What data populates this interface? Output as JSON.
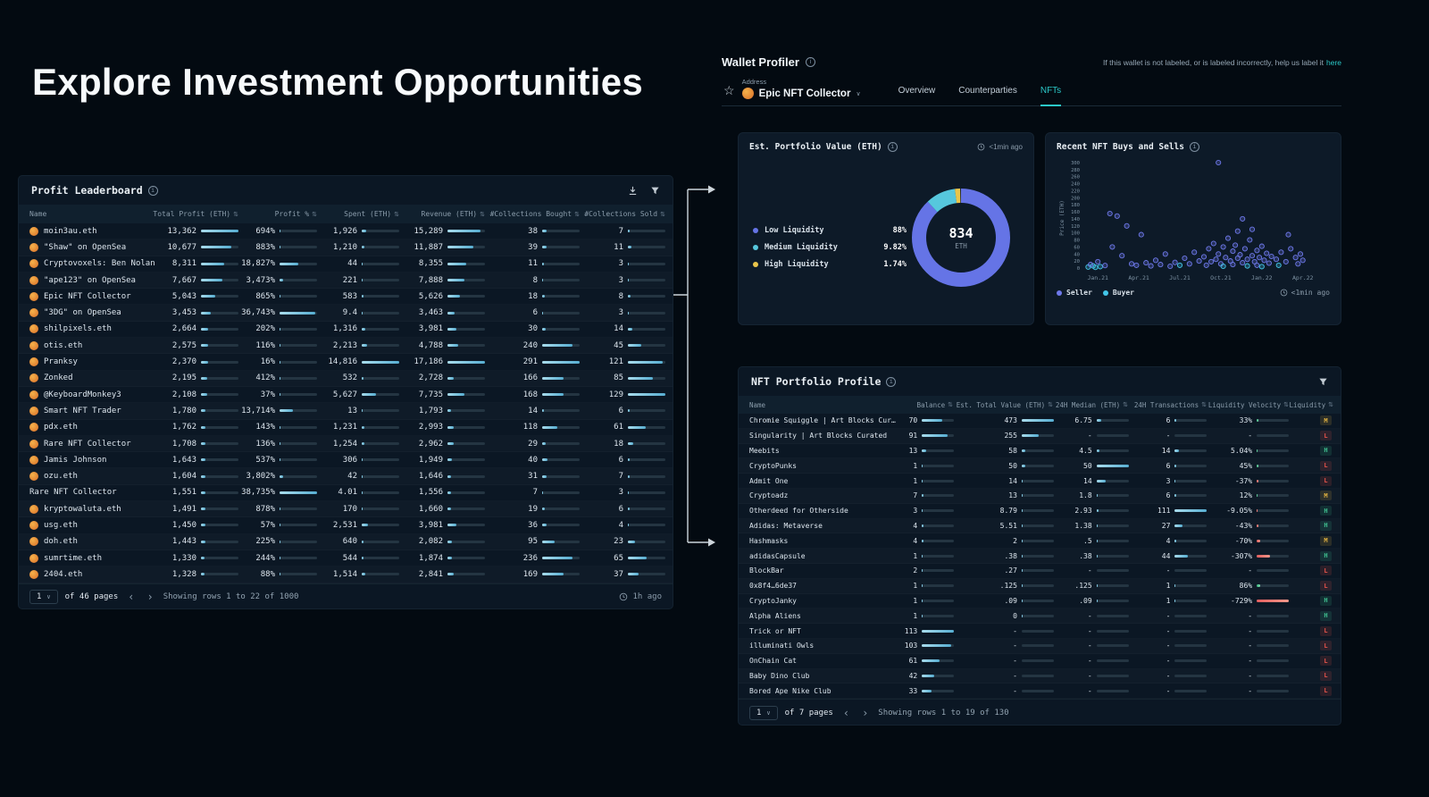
{
  "page": {
    "title": "Explore Investment Opportunities"
  },
  "leaderboard": {
    "title": "Profit Leaderboard",
    "columns": {
      "name": "Name",
      "total_profit": "Total Profit (ETH)",
      "profit_pct": "Profit %",
      "spent": "Spent (ETH)",
      "revenue": "Revenue (ETH)",
      "bought": "#Collections Bought",
      "sold": "#Collections Sold"
    },
    "rows": [
      {
        "name": "moin3au.eth",
        "avatar": true,
        "total_profit": "13,362",
        "profit_pct": "694%",
        "spent": "1,926",
        "revenue": "15,289",
        "bought": "38",
        "sold": "7"
      },
      {
        "name": "\"Shaw\" on OpenSea",
        "avatar": true,
        "total_profit": "10,677",
        "profit_pct": "883%",
        "spent": "1,210",
        "revenue": "11,887",
        "bought": "39",
        "sold": "11"
      },
      {
        "name": "Cryptovoxels: Ben Nolan",
        "avatar": true,
        "total_profit": "8,311",
        "profit_pct": "18,827%",
        "spent": "44",
        "revenue": "8,355",
        "bought": "11",
        "sold": "3"
      },
      {
        "name": "\"ape123\" on OpenSea",
        "avatar": true,
        "total_profit": "7,667",
        "profit_pct": "3,473%",
        "spent": "221",
        "revenue": "7,888",
        "bought": "8",
        "sold": "3"
      },
      {
        "name": "Epic NFT Collector",
        "avatar": true,
        "total_profit": "5,043",
        "profit_pct": "865%",
        "spent": "583",
        "revenue": "5,626",
        "bought": "18",
        "sold": "8"
      },
      {
        "name": "\"3DG\" on OpenSea",
        "avatar": true,
        "total_profit": "3,453",
        "profit_pct": "36,743%",
        "spent": "9.4",
        "revenue": "3,463",
        "bought": "6",
        "sold": "3"
      },
      {
        "name": "shilpixels.eth",
        "avatar": true,
        "total_profit": "2,664",
        "profit_pct": "202%",
        "spent": "1,316",
        "revenue": "3,981",
        "bought": "30",
        "sold": "14"
      },
      {
        "name": "otis.eth",
        "avatar": true,
        "total_profit": "2,575",
        "profit_pct": "116%",
        "spent": "2,213",
        "revenue": "4,788",
        "bought": "240",
        "sold": "45"
      },
      {
        "name": "Pranksy",
        "avatar": true,
        "total_profit": "2,370",
        "profit_pct": "16%",
        "spent": "14,816",
        "revenue": "17,186",
        "bought": "291",
        "sold": "121"
      },
      {
        "name": "Zonked",
        "avatar": true,
        "total_profit": "2,195",
        "profit_pct": "412%",
        "spent": "532",
        "revenue": "2,728",
        "bought": "166",
        "sold": "85"
      },
      {
        "name": "@KeyboardMonkey3",
        "avatar": true,
        "total_profit": "2,108",
        "profit_pct": "37%",
        "spent": "5,627",
        "revenue": "7,735",
        "bought": "168",
        "sold": "129"
      },
      {
        "name": "Smart NFT Trader",
        "avatar": true,
        "total_profit": "1,780",
        "profit_pct": "13,714%",
        "spent": "13",
        "revenue": "1,793",
        "bought": "14",
        "sold": "6"
      },
      {
        "name": "pdx.eth",
        "avatar": true,
        "total_profit": "1,762",
        "profit_pct": "143%",
        "spent": "1,231",
        "revenue": "2,993",
        "bought": "118",
        "sold": "61"
      },
      {
        "name": "Rare NFT Collector",
        "avatar": true,
        "total_profit": "1,708",
        "profit_pct": "136%",
        "spent": "1,254",
        "revenue": "2,962",
        "bought": "29",
        "sold": "18"
      },
      {
        "name": "Jamis Johnson",
        "avatar": true,
        "total_profit": "1,643",
        "profit_pct": "537%",
        "spent": "306",
        "revenue": "1,949",
        "bought": "40",
        "sold": "6"
      },
      {
        "name": "ozu.eth",
        "avatar": true,
        "total_profit": "1,604",
        "profit_pct": "3,802%",
        "spent": "42",
        "revenue": "1,646",
        "bought": "31",
        "sold": "7"
      },
      {
        "name": "Rare NFT Collector",
        "avatar": false,
        "total_profit": "1,551",
        "profit_pct": "38,735%",
        "spent": "4.01",
        "revenue": "1,556",
        "bought": "7",
        "sold": "3"
      },
      {
        "name": "kryptowaluta.eth",
        "avatar": true,
        "total_profit": "1,491",
        "profit_pct": "878%",
        "spent": "170",
        "revenue": "1,660",
        "bought": "19",
        "sold": "6"
      },
      {
        "name": "usg.eth",
        "avatar": true,
        "total_profit": "1,450",
        "profit_pct": "57%",
        "spent": "2,531",
        "revenue": "3,981",
        "bought": "36",
        "sold": "4"
      },
      {
        "name": "doh.eth",
        "avatar": true,
        "total_profit": "1,443",
        "profit_pct": "225%",
        "spent": "640",
        "revenue": "2,082",
        "bought": "95",
        "sold": "23"
      },
      {
        "name": "sumrtime.eth",
        "avatar": true,
        "total_profit": "1,330",
        "profit_pct": "244%",
        "spent": "544",
        "revenue": "1,874",
        "bought": "236",
        "sold": "65"
      },
      {
        "name": "2404.eth",
        "avatar": true,
        "total_profit": "1,328",
        "profit_pct": "88%",
        "spent": "1,514",
        "revenue": "2,841",
        "bought": "169",
        "sold": "37"
      }
    ],
    "footer": {
      "page": "1",
      "pages": "of 46 pages",
      "showing": "Showing rows 1 to 22 of 1000",
      "updated": "1h ago"
    }
  },
  "profiler": {
    "title": "Wallet Profiler",
    "help_text": "If this wallet is not labeled, or is labeled incorrectly, help us label it",
    "help_link": "here",
    "address_label": "Address",
    "address_value": "Epic NFT Collector",
    "tabs": [
      {
        "label": "Overview",
        "active": false
      },
      {
        "label": "Counterparties",
        "active": false
      },
      {
        "label": "NFTs",
        "active": true
      }
    ]
  },
  "portfolio_value": {
    "title": "Est. Portfolio Value (ETH)",
    "updated": "<1min ago",
    "center_value": "834",
    "center_unit": "ETH",
    "chart_type": "donut",
    "segments": [
      {
        "label": "Low Liquidity",
        "display": "88%",
        "value": 88,
        "color": "#6574e6"
      },
      {
        "label": "Medium Liquidity",
        "display": "9.82%",
        "value": 9.82,
        "color": "#56c7dd"
      },
      {
        "label": "High Liquidity",
        "display": "1.74%",
        "value": 1.74,
        "color": "#e9c54b"
      }
    ]
  },
  "buys_sells": {
    "title": "Recent NFT Buys and Sells",
    "updated": "<1min ago",
    "chart_type": "scatter",
    "ylabel": "Price (ETH)",
    "ymax": 300,
    "ystep": 20,
    "xticks": [
      "Jan.21",
      "Apr.21",
      "Jul.21",
      "Oct.21",
      "Jan.22",
      "Apr.22"
    ],
    "legend": [
      {
        "label": "Seller",
        "color": "#6e79ea"
      },
      {
        "label": "Buyer",
        "color": "#43c6e8"
      }
    ],
    "points": [
      [
        0.02,
        3,
        "b"
      ],
      [
        0.04,
        6,
        "b"
      ],
      [
        0.05,
        2,
        "b"
      ],
      [
        0.07,
        4,
        "b"
      ],
      [
        0.03,
        10,
        "s"
      ],
      [
        0.06,
        18,
        "s"
      ],
      [
        0.09,
        7,
        "s"
      ],
      [
        0.11,
        155,
        "s"
      ],
      [
        0.14,
        148,
        "s"
      ],
      [
        0.12,
        60,
        "s"
      ],
      [
        0.16,
        35,
        "s"
      ],
      [
        0.18,
        120,
        "s"
      ],
      [
        0.2,
        12,
        "s"
      ],
      [
        0.22,
        8,
        "s"
      ],
      [
        0.24,
        95,
        "s"
      ],
      [
        0.26,
        15,
        "s"
      ],
      [
        0.28,
        6,
        "s"
      ],
      [
        0.3,
        22,
        "s"
      ],
      [
        0.32,
        10,
        "s"
      ],
      [
        0.34,
        40,
        "s"
      ],
      [
        0.36,
        5,
        "s"
      ],
      [
        0.38,
        16,
        "s"
      ],
      [
        0.4,
        8,
        "b"
      ],
      [
        0.42,
        28,
        "s"
      ],
      [
        0.44,
        12,
        "s"
      ],
      [
        0.46,
        45,
        "s"
      ],
      [
        0.48,
        20,
        "s"
      ],
      [
        0.5,
        32,
        "s"
      ],
      [
        0.51,
        8,
        "s"
      ],
      [
        0.52,
        55,
        "s"
      ],
      [
        0.53,
        18,
        "s"
      ],
      [
        0.54,
        70,
        "s"
      ],
      [
        0.55,
        25,
        "s"
      ],
      [
        0.56,
        300,
        "s"
      ],
      [
        0.56,
        40,
        "s"
      ],
      [
        0.57,
        12,
        "s"
      ],
      [
        0.58,
        60,
        "s"
      ],
      [
        0.58,
        5,
        "b"
      ],
      [
        0.59,
        30,
        "s"
      ],
      [
        0.6,
        85,
        "s"
      ],
      [
        0.61,
        20,
        "s"
      ],
      [
        0.62,
        48,
        "s"
      ],
      [
        0.62,
        10,
        "s"
      ],
      [
        0.63,
        65,
        "s"
      ],
      [
        0.64,
        28,
        "s"
      ],
      [
        0.64,
        105,
        "s"
      ],
      [
        0.65,
        38,
        "s"
      ],
      [
        0.66,
        140,
        "s"
      ],
      [
        0.66,
        15,
        "s"
      ],
      [
        0.67,
        55,
        "s"
      ],
      [
        0.68,
        25,
        "s"
      ],
      [
        0.68,
        6,
        "b"
      ],
      [
        0.69,
        80,
        "s"
      ],
      [
        0.7,
        35,
        "s"
      ],
      [
        0.7,
        110,
        "s"
      ],
      [
        0.71,
        18,
        "s"
      ],
      [
        0.72,
        50,
        "s"
      ],
      [
        0.72,
        8,
        "s"
      ],
      [
        0.73,
        30,
        "s"
      ],
      [
        0.74,
        62,
        "s"
      ],
      [
        0.74,
        4,
        "b"
      ],
      [
        0.75,
        22,
        "s"
      ],
      [
        0.76,
        42,
        "s"
      ],
      [
        0.77,
        14,
        "s"
      ],
      [
        0.78,
        33,
        "s"
      ],
      [
        0.8,
        25,
        "s"
      ],
      [
        0.81,
        8,
        "b"
      ],
      [
        0.82,
        45,
        "s"
      ],
      [
        0.84,
        18,
        "s"
      ],
      [
        0.85,
        95,
        "s"
      ],
      [
        0.86,
        55,
        "s"
      ],
      [
        0.88,
        30,
        "s"
      ],
      [
        0.89,
        12,
        "s"
      ],
      [
        0.9,
        40,
        "s"
      ],
      [
        0.91,
        22,
        "s"
      ]
    ]
  },
  "portfolio_profile": {
    "title": "NFT Portfolio Profile",
    "columns": {
      "name": "Name",
      "balance": "Balance",
      "est_value": "Est. Total Value (ETH)",
      "median": "24H Median (ETH)",
      "tx": "24H Transactions",
      "velocity": "Liquidity Velocity",
      "liquidity": "Liquidity"
    },
    "rows": [
      {
        "name": "Chromie Squiggle | Art Blocks Cur…",
        "balance": "70",
        "est_value": "473",
        "median": "6.75",
        "tx": "6",
        "velocity": "33%",
        "liquidity": "M"
      },
      {
        "name": "Singularity | Art Blocks Curated",
        "balance": "91",
        "est_value": "255",
        "median": "-",
        "tx": "-",
        "velocity": "-",
        "liquidity": "L"
      },
      {
        "name": "Meebits",
        "balance": "13",
        "est_value": "58",
        "median": "4.5",
        "tx": "14",
        "velocity": "5.04%",
        "liquidity": "H"
      },
      {
        "name": "CryptoPunks",
        "balance": "1",
        "est_value": "50",
        "median": "50",
        "tx": "6",
        "velocity": "45%",
        "liquidity": "L"
      },
      {
        "name": "Admit One",
        "balance": "1",
        "est_value": "14",
        "median": "14",
        "tx": "3",
        "velocity": "-37%",
        "liquidity": "L"
      },
      {
        "name": "Cryptoadz",
        "balance": "7",
        "est_value": "13",
        "median": "1.8",
        "tx": "6",
        "velocity": "12%",
        "liquidity": "M"
      },
      {
        "name": "Otherdeed for Otherside",
        "balance": "3",
        "est_value": "8.79",
        "median": "2.93",
        "tx": "111",
        "velocity": "-9.05%",
        "liquidity": "H"
      },
      {
        "name": "Adidas: Metaverse",
        "balance": "4",
        "est_value": "5.51",
        "median": "1.38",
        "tx": "27",
        "velocity": "-43%",
        "liquidity": "H"
      },
      {
        "name": "Hashmasks",
        "balance": "4",
        "est_value": "2",
        "median": ".5",
        "tx": "4",
        "velocity": "-70%",
        "liquidity": "M"
      },
      {
        "name": "adidasCapsule",
        "balance": "1",
        "est_value": ".38",
        "median": ".38",
        "tx": "44",
        "velocity": "-307%",
        "liquidity": "H"
      },
      {
        "name": "BlockBar",
        "balance": "2",
        "est_value": ".27",
        "median": "-",
        "tx": "-",
        "velocity": "-",
        "liquidity": "L"
      },
      {
        "name": "0x8f4…6de37",
        "balance": "1",
        "est_value": ".125",
        "median": ".125",
        "tx": "1",
        "velocity": "86%",
        "liquidity": "L"
      },
      {
        "name": "CryptoJanky",
        "balance": "1",
        "est_value": ".09",
        "median": ".09",
        "tx": "1",
        "velocity": "-729%",
        "liquidity": "H"
      },
      {
        "name": "Alpha Aliens",
        "balance": "1",
        "est_value": "0",
        "median": "-",
        "tx": "-",
        "velocity": "-",
        "liquidity": "H"
      },
      {
        "name": "Trick or NFT",
        "balance": "113",
        "est_value": "-",
        "median": "-",
        "tx": "-",
        "velocity": "-",
        "liquidity": "L"
      },
      {
        "name": "illuminati Owls",
        "balance": "103",
        "est_value": "-",
        "median": "-",
        "tx": "-",
        "velocity": "-",
        "liquidity": "L"
      },
      {
        "name": "OnChain Cat",
        "balance": "61",
        "est_value": "-",
        "median": "-",
        "tx": "-",
        "velocity": "-",
        "liquidity": "L"
      },
      {
        "name": "Baby Dino Club",
        "balance": "42",
        "est_value": "-",
        "median": "-",
        "tx": "-",
        "velocity": "-",
        "liquidity": "L"
      },
      {
        "name": "Bored Ape Nike Club",
        "balance": "33",
        "est_value": "-",
        "median": "-",
        "tx": "-",
        "velocity": "-",
        "liquidity": "L"
      }
    ],
    "footer": {
      "page": "1",
      "pages": "of 7 pages",
      "showing": "Showing rows 1 to 19 of 130"
    }
  },
  "colors": {
    "accent": "#2bc8c8",
    "bar": "#7ecbe3",
    "positive": "#3ecf8e",
    "negative": "#e35f5f"
  }
}
